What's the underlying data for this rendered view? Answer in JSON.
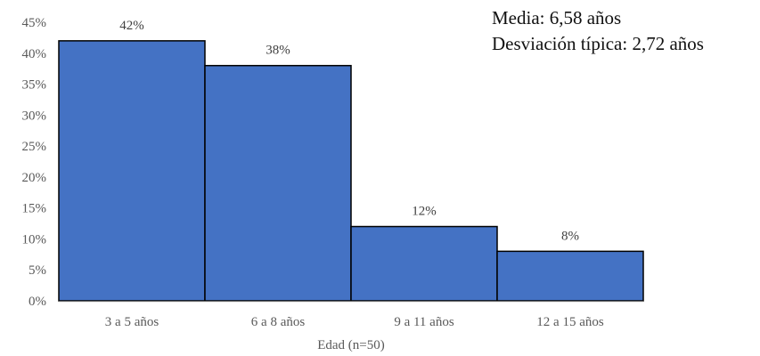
{
  "stats": {
    "mean": "Media: 6,58 años",
    "sd": "Desviación típica: 2,72 años"
  },
  "chart_data": {
    "type": "bar",
    "categories": [
      "3 a 5 años",
      "6 a 8 años",
      "9 a 11 años",
      "12 a 15 años"
    ],
    "values": [
      42,
      38,
      12,
      8
    ],
    "data_labels": [
      "42%",
      "38%",
      "12%",
      "8%"
    ],
    "xlabel": "Edad (n=50)",
    "ylabel": "",
    "ylim": [
      0,
      45
    ],
    "yticks": [
      "0%",
      "5%",
      "10%",
      "15%",
      "20%",
      "25%",
      "30%",
      "35%",
      "40%",
      "45%"
    ],
    "grid": false,
    "legend": "none",
    "bar_color": "#4472C4",
    "bar_edge_color": "#000000"
  }
}
